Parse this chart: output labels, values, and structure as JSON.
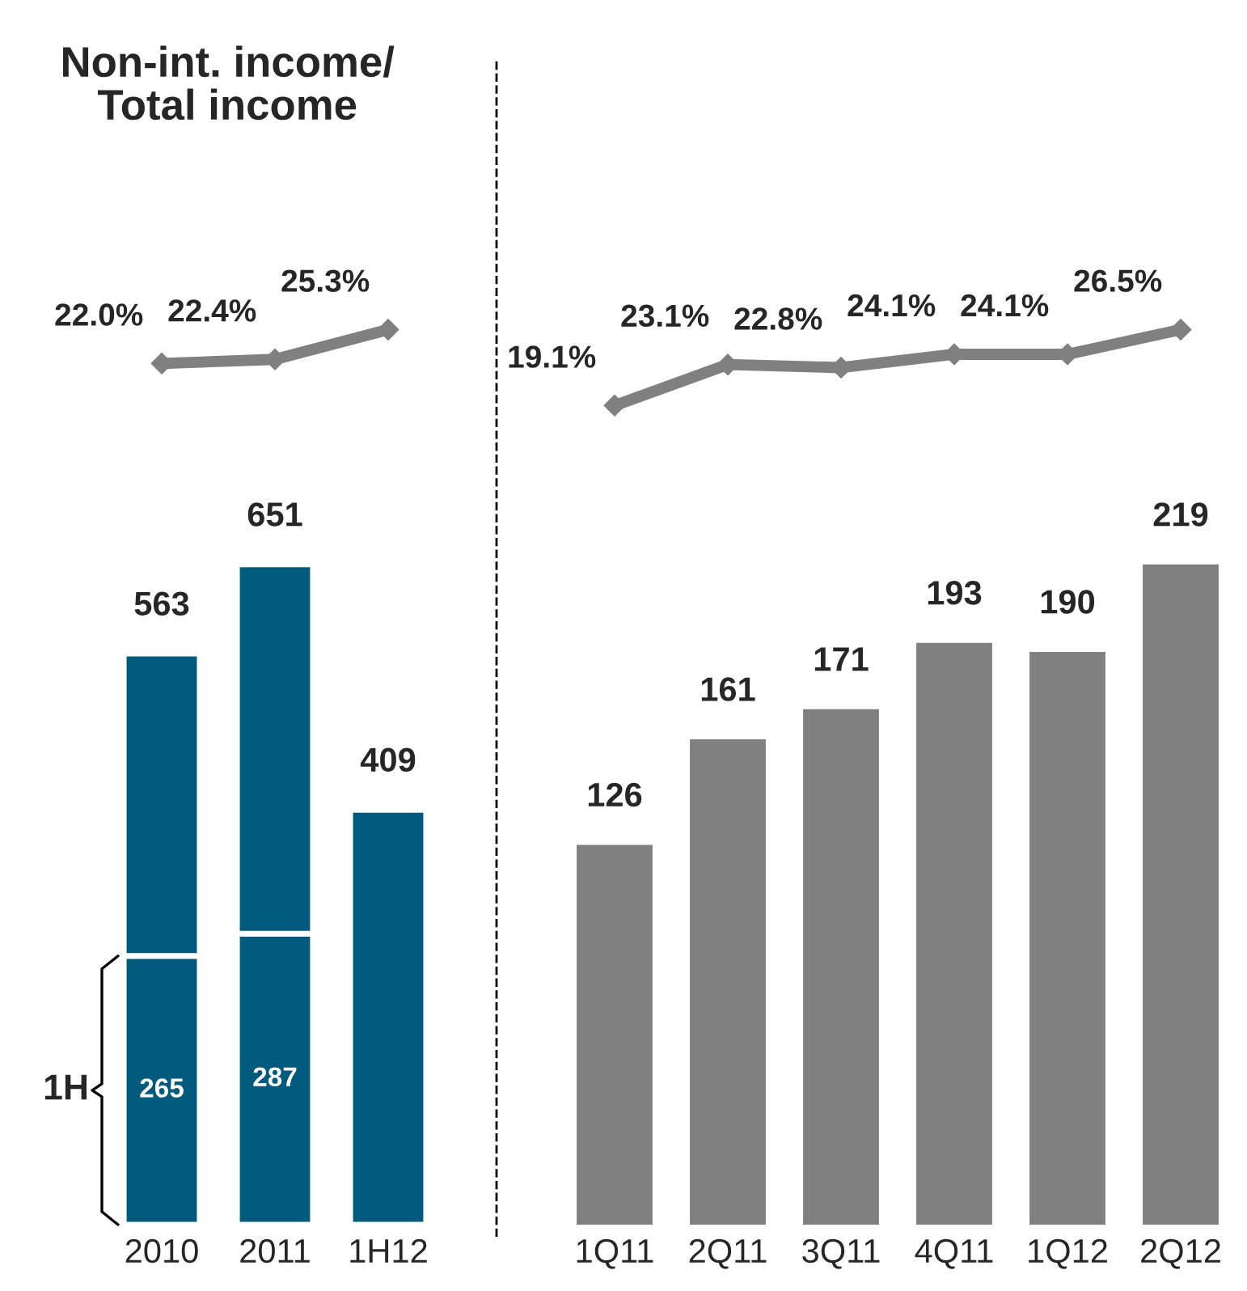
{
  "chart_data": [
    {
      "type": "line",
      "title": "Non-int. income/\nTotal income",
      "categories": [
        null,
        null,
        null
      ],
      "series": [
        {
          "color": "#808080",
          "values": [
            22.0,
            22.4,
            25.3
          ],
          "value_labels": [
            "22.0%",
            "22.4%",
            "25.3%"
          ]
        }
      ],
      "tick_labels": false,
      "marker": "diamond",
      "grid": false
    },
    {
      "type": "bar",
      "categories": [
        "2010",
        "2011",
        "1H12"
      ],
      "stacked": true,
      "series": [
        {
          "color": "#005a7e",
          "values": [
            265,
            287,
            409
          ],
          "value_labels": [
            "265",
            "287",
            null
          ]
        },
        {
          "color": "#005a7e",
          "values": [
            298,
            364,
            null
          ]
        }
      ],
      "totals": [
        "563",
        "651",
        "409"
      ],
      "tick_labels": "x",
      "grid": false,
      "annotations": [
        "1H"
      ]
    },
    {
      "type": "line",
      "categories": [
        null,
        null,
        null,
        null,
        null,
        null
      ],
      "series": [
        {
          "color": "#808080",
          "values": [
            19.1,
            23.1,
            22.8,
            24.1,
            24.1,
            26.5
          ],
          "value_labels": [
            "19.1%",
            "23.1%",
            "22.8%",
            "24.1%",
            "24.1%",
            "26.5%"
          ]
        }
      ],
      "tick_labels": false,
      "marker": "diamond",
      "grid": false
    },
    {
      "type": "bar",
      "categories": [
        "1Q11",
        "2Q11",
        "3Q11",
        "4Q11",
        "1Q12",
        "2Q12"
      ],
      "series": [
        {
          "color": "#808080",
          "values": [
            126,
            161,
            171,
            193,
            190,
            219
          ]
        }
      ],
      "data_labels": true,
      "tick_labels": "x",
      "grid": false
    }
  ]
}
